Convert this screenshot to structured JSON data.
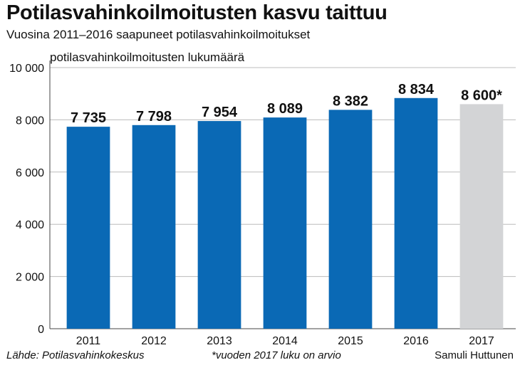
{
  "chart_data": {
    "type": "bar",
    "title": "Potilasvahinkoilmoitusten kasvu taittuu",
    "subtitle": "Vuosina 2011–2016 saapuneet potilasvahinkoilmoitukset",
    "ylabel": "potilasvahinkoilmoitusten lukumäärä",
    "categories": [
      "2011",
      "2012",
      "2013",
      "2014",
      "2015",
      "2016",
      "2017"
    ],
    "values": [
      7735,
      7798,
      7954,
      8089,
      8382,
      8834,
      8600
    ],
    "data_labels": [
      "7 735",
      "7 798",
      "7 954",
      "8 089",
      "8 382",
      "8 834",
      "8 600*"
    ],
    "ylim": [
      0,
      10000
    ],
    "yticks": [
      0,
      2000,
      4000,
      6000,
      8000,
      10000
    ],
    "ytick_labels": [
      "0",
      "2 000",
      "4 000",
      "6 000",
      "8 000",
      "10 000"
    ],
    "grid": true,
    "colors": {
      "actual": "#0a69b5",
      "estimate": "#d3d4d6",
      "grid": "#bcbcbc"
    },
    "estimate_index": 6
  },
  "footer": {
    "source": "Lähde: Potilasvahinkokeskus",
    "note": "*vuoden 2017 luku on arvio",
    "author": "Samuli Huttunen"
  }
}
